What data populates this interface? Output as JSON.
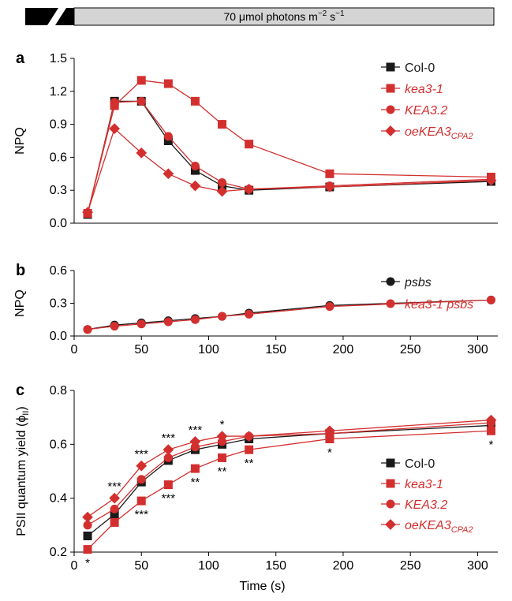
{
  "banner": {
    "light_label": "70 μmol photons m",
    "sup1": "−2",
    "mid": " s",
    "sup2": "−1"
  },
  "colors": {
    "black": "#1a1a1a",
    "red": "#d32f2f",
    "error": "#999999"
  },
  "chart_data": [
    {
      "panel": "a",
      "type": "line",
      "ylabel": "NPQ",
      "xlabel": "",
      "xlim": [
        0,
        315
      ],
      "ylim": [
        0,
        1.5
      ],
      "yticks": [
        "0.0",
        "0.3",
        "0.6",
        "0.9",
        "1.2",
        "1.5"
      ],
      "x": [
        10,
        30,
        50,
        70,
        90,
        110,
        130,
        190,
        310
      ],
      "series": [
        {
          "name": "Col-0",
          "italic": false,
          "color": "black",
          "marker": "square",
          "values": [
            0.08,
            1.11,
            1.11,
            0.75,
            0.48,
            0.34,
            0.3,
            0.33,
            0.38
          ]
        },
        {
          "name": "kea3-1",
          "italic": true,
          "color": "red",
          "marker": "square",
          "values": [
            0.09,
            1.07,
            1.3,
            1.27,
            1.11,
            0.9,
            0.72,
            0.45,
            0.42
          ]
        },
        {
          "name": "KEA3.2",
          "italic": true,
          "color": "red",
          "marker": "circle",
          "values": [
            0.09,
            1.1,
            1.11,
            0.79,
            0.52,
            0.37,
            0.31,
            0.34,
            0.4
          ]
        },
        {
          "name": "oeKEA3",
          "sub": "CPA2",
          "italic": true,
          "color": "red",
          "marker": "diamond",
          "values": [
            0.1,
            0.86,
            0.64,
            0.45,
            0.34,
            0.29,
            0.31,
            0.33,
            0.39
          ]
        }
      ]
    },
    {
      "panel": "b",
      "type": "line",
      "ylabel": "NPQ",
      "xlabel": "",
      "xlim": [
        0,
        315
      ],
      "ylim": [
        0,
        0.6
      ],
      "yticks": [
        "0.0",
        "0.3",
        "0.6"
      ],
      "xticks": [
        "0",
        "50",
        "100",
        "150",
        "200",
        "250",
        "300"
      ],
      "x": [
        10,
        30,
        50,
        70,
        90,
        110,
        130,
        190,
        310
      ],
      "series": [
        {
          "name": "psbs",
          "italic": true,
          "color": "black",
          "marker": "circle",
          "values": [
            0.06,
            0.1,
            0.12,
            0.14,
            0.16,
            0.18,
            0.21,
            0.28,
            0.33
          ]
        },
        {
          "name": "kea3-1 psbs",
          "italic": true,
          "color": "red",
          "marker": "circle",
          "values": [
            0.06,
            0.09,
            0.11,
            0.13,
            0.15,
            0.18,
            0.2,
            0.27,
            0.33
          ]
        }
      ]
    },
    {
      "panel": "c",
      "type": "line",
      "ylabel": "PSII quantum yield (",
      "ylabel_phi": "ϕ",
      "ylabel_sub": "II",
      "ylabel_close": ")",
      "xlabel": "Time (s)",
      "xlim": [
        0,
        315
      ],
      "ylim": [
        0.2,
        0.8
      ],
      "yticks": [
        "0.2",
        "0.4",
        "0.6",
        "0.8"
      ],
      "xticks": [
        "0",
        "50",
        "100",
        "150",
        "200",
        "250",
        "300"
      ],
      "x": [
        10,
        30,
        50,
        70,
        90,
        110,
        130,
        190,
        310
      ],
      "series": [
        {
          "name": "Col-0",
          "italic": false,
          "color": "black",
          "marker": "square",
          "values": [
            0.26,
            0.34,
            0.46,
            0.54,
            0.58,
            0.6,
            0.62,
            0.64,
            0.67
          ]
        },
        {
          "name": "kea3-1",
          "italic": true,
          "color": "red",
          "marker": "square",
          "values": [
            0.21,
            0.31,
            0.39,
            0.45,
            0.51,
            0.55,
            0.58,
            0.62,
            0.65
          ]
        },
        {
          "name": "KEA3.2",
          "italic": true,
          "color": "red",
          "marker": "circle",
          "values": [
            0.3,
            0.36,
            0.47,
            0.55,
            0.59,
            0.61,
            0.63,
            0.64,
            0.68
          ]
        },
        {
          "name": "oeKEA3",
          "sub": "CPA2",
          "italic": true,
          "color": "red",
          "marker": "diamond",
          "values": [
            0.33,
            0.4,
            0.52,
            0.58,
            0.61,
            0.63,
            0.63,
            0.65,
            0.69
          ]
        }
      ],
      "annotations_above": [
        {
          "x": 30,
          "label": "***"
        },
        {
          "x": 50,
          "label": "***"
        },
        {
          "x": 70,
          "label": "***"
        },
        {
          "x": 90,
          "label": "***"
        },
        {
          "x": 110,
          "label": "*"
        }
      ],
      "annotations_below": [
        {
          "x": 10,
          "label": "*"
        },
        {
          "x": 50,
          "label": "***"
        },
        {
          "x": 70,
          "label": "***"
        },
        {
          "x": 90,
          "label": "**"
        },
        {
          "x": 110,
          "label": "**"
        },
        {
          "x": 130,
          "label": "**"
        },
        {
          "x": 190,
          "label": "*"
        },
        {
          "x": 310,
          "label": "*"
        }
      ]
    }
  ]
}
